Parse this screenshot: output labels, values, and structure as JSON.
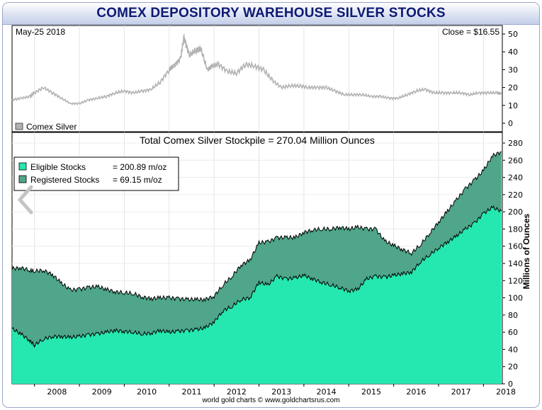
{
  "title": "COMEX DEPOSITORY WAREHOUSE SILVER STOCKS",
  "footer": "world gold charts © www.goldchartsrus.com",
  "colors": {
    "title_text": "#0d1a73",
    "silver_line": "#b2b2b2",
    "eligible_fill": "#25e8b0",
    "registered_fill": "#4fa68a",
    "nav_arrow": "#c4c4c4"
  },
  "top_panel": {
    "date_label": "May-25  2018",
    "close_label": "Close = $16.55",
    "legend": "Comex Silver",
    "y_ticks": [
      "0",
      "10",
      "20",
      "30",
      "40",
      "50"
    ]
  },
  "bottom_panel": {
    "title": "Total Comex Silver Stockpile = 270.04 Million Ounces",
    "ylabel": "Millions of Ounces",
    "legend": [
      {
        "label": "Eligible Stocks",
        "value": "= 200.89 m/oz"
      },
      {
        "label": "Registered Stocks",
        "value": "= 69.15 m/oz"
      }
    ],
    "y_ticks": [
      "0",
      "20",
      "40",
      "60",
      "80",
      "100",
      "120",
      "140",
      "160",
      "180",
      "200",
      "220",
      "240",
      "260",
      "280"
    ]
  },
  "x_ticks": [
    "2008",
    "2009",
    "2010",
    "2011",
    "2012",
    "2013",
    "2014",
    "2015",
    "2016",
    "2017",
    "2018"
  ],
  "chart_data": [
    {
      "type": "line",
      "title": "",
      "series": [
        {
          "name": "Comex Silver",
          "x": [
            2007.5,
            2007.7,
            2007.9,
            2008.0,
            2008.2,
            2008.4,
            2008.6,
            2008.8,
            2009.0,
            2009.2,
            2009.4,
            2009.6,
            2009.8,
            2010.0,
            2010.2,
            2010.4,
            2010.6,
            2010.8,
            2011.0,
            2011.1,
            2011.25,
            2011.33,
            2011.45,
            2011.6,
            2011.7,
            2011.85,
            2011.95,
            2012.1,
            2012.3,
            2012.5,
            2012.7,
            2012.9,
            2013.1,
            2013.3,
            2013.5,
            2013.7,
            2013.9,
            2014.1,
            2014.3,
            2014.5,
            2014.7,
            2014.9,
            2015.1,
            2015.3,
            2015.5,
            2015.7,
            2015.9,
            2016.1,
            2016.3,
            2016.5,
            2016.7,
            2016.9,
            2017.1,
            2017.3,
            2017.5,
            2017.7,
            2017.9,
            2018.1,
            2018.3,
            2018.4
          ],
          "y": [
            13,
            14,
            15,
            17,
            20,
            17,
            14,
            11,
            11,
            13,
            14,
            15,
            17,
            18,
            17,
            18,
            19,
            23,
            30,
            32,
            36,
            48,
            38,
            41,
            42,
            30,
            32,
            33,
            29,
            28,
            33,
            32,
            30,
            24,
            20,
            21,
            21,
            20,
            20,
            20,
            18,
            16,
            16,
            16,
            15,
            15,
            14,
            14,
            16,
            18,
            19,
            17,
            17,
            17,
            17,
            16,
            17,
            17,
            17,
            16.55
          ]
        }
      ],
      "ylim": [
        0,
        55
      ],
      "legend_position": "bottom-left"
    },
    {
      "type": "area",
      "title": "Total Comex Silver Stockpile = 270.04 Million Ounces",
      "ylabel": "Millions of Ounces",
      "x": [
        2007.5,
        2007.7,
        2007.9,
        2008.0,
        2008.2,
        2008.4,
        2008.6,
        2008.8,
        2009.0,
        2009.2,
        2009.4,
        2009.6,
        2009.8,
        2010.0,
        2010.2,
        2010.4,
        2010.6,
        2010.8,
        2011.0,
        2011.2,
        2011.4,
        2011.6,
        2011.8,
        2012.0,
        2012.2,
        2012.4,
        2012.6,
        2012.8,
        2013.0,
        2013.2,
        2013.4,
        2013.6,
        2013.8,
        2014.0,
        2014.2,
        2014.4,
        2014.6,
        2014.8,
        2015.0,
        2015.2,
        2015.4,
        2015.6,
        2015.8,
        2016.0,
        2016.2,
        2016.4,
        2016.6,
        2016.8,
        2017.0,
        2017.2,
        2017.4,
        2017.6,
        2017.8,
        2018.0,
        2018.2,
        2018.4
      ],
      "series": [
        {
          "name": "Eligible Stocks",
          "values": [
            64,
            58,
            50,
            45,
            52,
            55,
            55,
            54,
            55,
            57,
            58,
            60,
            62,
            61,
            60,
            58,
            59,
            62,
            60,
            61,
            62,
            63,
            65,
            72,
            85,
            90,
            98,
            100,
            118,
            115,
            125,
            122,
            123,
            126,
            122,
            118,
            115,
            112,
            108,
            110,
            122,
            125,
            124,
            126,
            128,
            130,
            142,
            150,
            158,
            165,
            172,
            180,
            187,
            198,
            205,
            200.89
          ]
        },
        {
          "name": "Registered Stocks",
          "values": [
            70,
            77,
            82,
            86,
            80,
            72,
            62,
            55,
            55,
            55,
            55,
            50,
            45,
            45,
            45,
            43,
            40,
            38,
            40,
            38,
            36,
            35,
            33,
            30,
            30,
            35,
            40,
            44,
            46,
            50,
            45,
            48,
            47,
            50,
            57,
            62,
            65,
            70,
            72,
            72,
            58,
            55,
            42,
            35,
            28,
            22,
            20,
            25,
            30,
            36,
            42,
            47,
            50,
            50,
            60,
            69.15
          ]
        }
      ],
      "ylim": [
        0,
        290
      ],
      "legend_position": "top-left"
    }
  ]
}
